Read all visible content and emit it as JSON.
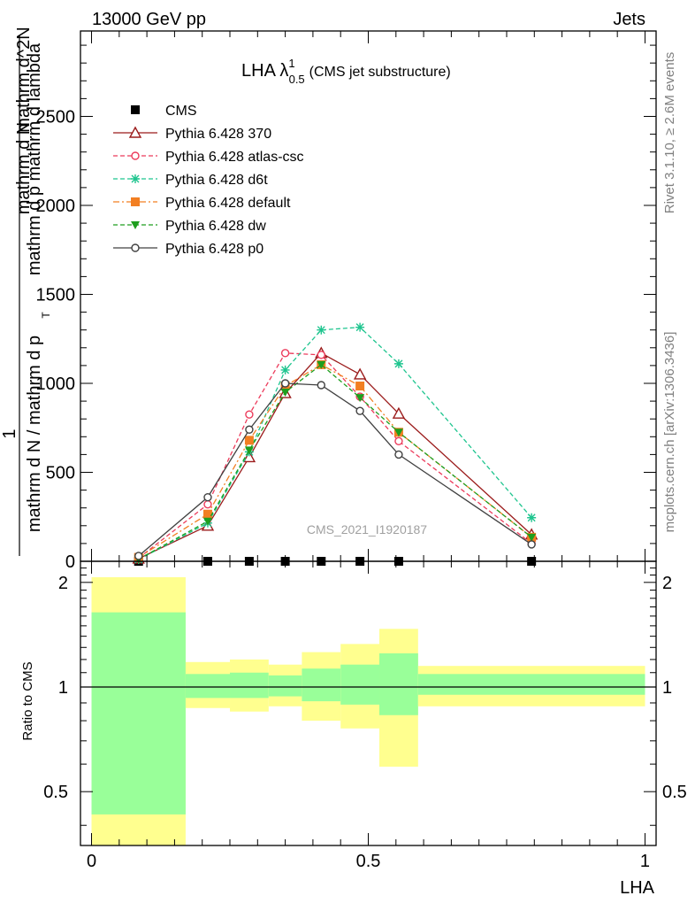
{
  "header": {
    "left": "13000 GeV pp",
    "right": "Jets"
  },
  "side": {
    "rivet": "Rivet 3.1.10, ≥ 2.6M events",
    "mcplots": "mcplots.cern.ch [arXiv:1306.3436]"
  },
  "watermark": "CMS_2021_I1920187",
  "chart_data": [
    {
      "type": "line",
      "title_main": "LHA λ",
      "title_sup": "1",
      "title_sub": "0.5",
      "title_rest": "(CMS jet substructure)",
      "ylabel_top": "1",
      "ylabel_frac_num": "mathrm d N / mathrm d p",
      "ylabel_frac_sub": "T",
      "ylabel_frac_den": "mathrm d N",
      "ylabel_lambda": "mathrm d p mathrm d lambda",
      "ylabel_den_right": "mathrm d^2N",
      "xlim": [
        -0.02,
        1.02
      ],
      "ylim": [
        0,
        2980
      ],
      "yticks": [
        0,
        500,
        1000,
        1500,
        2000,
        2500
      ],
      "ytick_labels": [
        "0",
        "500",
        "1000",
        "1500",
        "2000",
        "2500"
      ],
      "x": [
        0.085,
        0.21,
        0.285,
        0.35,
        0.415,
        0.485,
        0.555,
        0.795
      ],
      "cms_y": [
        0,
        0,
        0,
        0,
        0,
        0,
        0,
        0
      ],
      "series": [
        {
          "name": "CMS",
          "color": "#000000",
          "marker": "square-filled",
          "dash": "none",
          "values": [
            0,
            0,
            0,
            0,
            0,
            0,
            0,
            0
          ]
        },
        {
          "name": "Pythia 6.428 370",
          "color": "#9b1b1b",
          "marker": "triangle-open",
          "dash": "solid",
          "values": [
            15,
            200,
            585,
            945,
            1170,
            1050,
            830,
            150
          ]
        },
        {
          "name": "Pythia 6.428 atlas-csc",
          "color": "#ec3b5b",
          "marker": "circle-open",
          "dash": "dashed",
          "values": [
            18,
            320,
            825,
            1170,
            1160,
            925,
            675,
            100
          ]
        },
        {
          "name": "Pythia 6.428 d6t",
          "color": "#1fc58f",
          "marker": "star",
          "dash": "dashed",
          "values": [
            10,
            215,
            615,
            1075,
            1300,
            1315,
            1110,
            245
          ]
        },
        {
          "name": "Pythia 6.428 default",
          "color": "#f27f22",
          "marker": "square-filled",
          "dash": "dashdot",
          "values": [
            22,
            265,
            680,
            985,
            1105,
            985,
            725,
            135
          ]
        },
        {
          "name": "Pythia 6.428 dw",
          "color": "#1e9e1e",
          "marker": "triangle-down-filled",
          "dash": "dashed",
          "values": [
            12,
            225,
            625,
            950,
            1105,
            920,
            725,
            135
          ]
        },
        {
          "name": "Pythia 6.428 p0",
          "color": "#404040",
          "marker": "circle-open",
          "dash": "solid",
          "values": [
            30,
            360,
            740,
            1000,
            990,
            845,
            600,
            95
          ]
        }
      ]
    },
    {
      "type": "area",
      "ylabel": "Ratio to CMS",
      "xlabel": "LHA",
      "xlim": [
        -0.02,
        1.02
      ],
      "ylim": [
        0.35,
        2.3
      ],
      "xticks": [
        0,
        0.5,
        1
      ],
      "xtick_labels": [
        "0",
        "0.5",
        "1"
      ],
      "yticks": [
        0.5,
        1,
        2
      ],
      "ytick_labels": [
        "0.5",
        "1",
        "2"
      ],
      "bins": [
        {
          "lo": 0.0,
          "hi": 0.17,
          "stat_lo": 0.43,
          "stat_hi": 1.64,
          "tot_lo": 0.35,
          "tot_hi": 2.07
        },
        {
          "lo": 0.17,
          "hi": 0.25,
          "stat_lo": 0.93,
          "stat_hi": 1.09,
          "tot_lo": 0.87,
          "tot_hi": 1.18
        },
        {
          "lo": 0.25,
          "hi": 0.32,
          "stat_lo": 0.93,
          "stat_hi": 1.1,
          "tot_lo": 0.85,
          "tot_hi": 1.2
        },
        {
          "lo": 0.32,
          "hi": 0.38,
          "stat_lo": 0.94,
          "stat_hi": 1.08,
          "tot_lo": 0.88,
          "tot_hi": 1.16
        },
        {
          "lo": 0.38,
          "hi": 0.45,
          "stat_lo": 0.91,
          "stat_hi": 1.13,
          "tot_lo": 0.8,
          "tot_hi": 1.26
        },
        {
          "lo": 0.45,
          "hi": 0.52,
          "stat_lo": 0.89,
          "stat_hi": 1.16,
          "tot_lo": 0.76,
          "tot_hi": 1.33
        },
        {
          "lo": 0.52,
          "hi": 0.59,
          "stat_lo": 0.83,
          "stat_hi": 1.25,
          "tot_lo": 0.59,
          "tot_hi": 1.47
        },
        {
          "lo": 0.59,
          "hi": 1.0,
          "stat_lo": 0.95,
          "stat_hi": 1.09,
          "tot_lo": 0.88,
          "tot_hi": 1.15
        }
      ],
      "stat_color": "#99ff99",
      "total_color": "#ffff8f"
    }
  ]
}
